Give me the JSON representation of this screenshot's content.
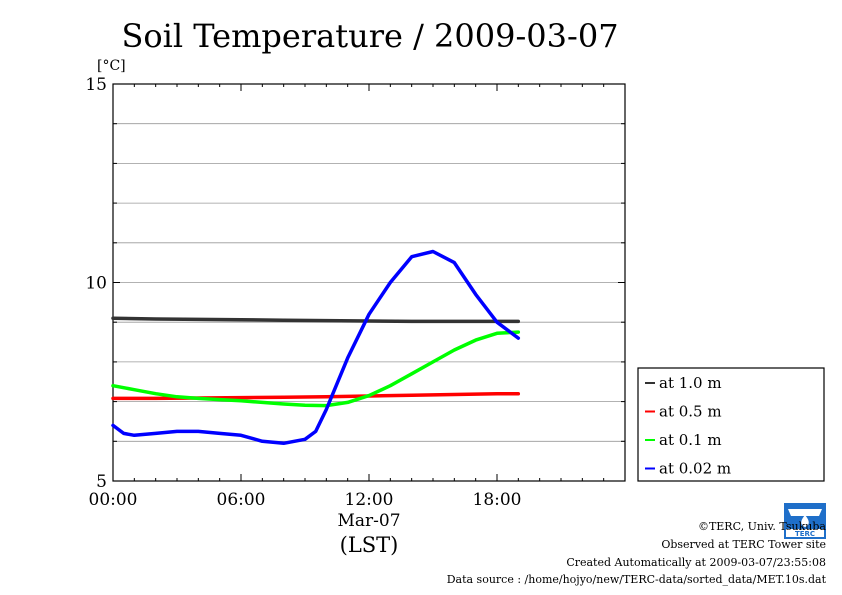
{
  "chart_data": {
    "type": "line",
    "title": "Soil Temperature / 2009-03-07",
    "ylabel": "[°C]",
    "xlabel": "(LST)",
    "date_label": "Mar-07",
    "ylim": [
      5,
      15
    ],
    "yticks": [
      "5",
      "10",
      "15"
    ],
    "xlim_hours": [
      0,
      24
    ],
    "xticks": [
      {
        "hour": 0,
        "label": "00:00"
      },
      {
        "hour": 6,
        "label": "06:00"
      },
      {
        "hour": 12,
        "label": "12:00"
      },
      {
        "hour": 18,
        "label": "18:00"
      }
    ],
    "grid": true,
    "legend_position": "right",
    "series": [
      {
        "name": "at 1.0 m",
        "color": "#333333",
        "x": [
          0,
          2,
          4,
          6,
          8,
          10,
          12,
          14,
          16,
          18,
          19
        ],
        "y": [
          9.1,
          9.08,
          9.07,
          9.06,
          9.05,
          9.04,
          9.03,
          9.02,
          9.02,
          9.02,
          9.02
        ]
      },
      {
        "name": "at 0.5 m",
        "color": "#ff0000",
        "x": [
          0,
          2,
          4,
          6,
          8,
          10,
          12,
          14,
          16,
          18,
          19
        ],
        "y": [
          7.08,
          7.08,
          7.09,
          7.1,
          7.11,
          7.12,
          7.14,
          7.16,
          7.18,
          7.2,
          7.2
        ]
      },
      {
        "name": "at 0.1 m",
        "color": "#00ff00",
        "x": [
          0,
          1,
          2,
          3,
          4,
          5,
          6,
          7,
          8,
          9,
          10,
          11,
          12,
          13,
          14,
          15,
          16,
          17,
          18,
          19
        ],
        "y": [
          7.4,
          7.3,
          7.2,
          7.12,
          7.08,
          7.05,
          7.02,
          6.98,
          6.94,
          6.91,
          6.9,
          6.98,
          7.15,
          7.4,
          7.7,
          8.0,
          8.3,
          8.55,
          8.72,
          8.75
        ]
      },
      {
        "name": "at 0.02 m",
        "color": "#0000ff",
        "x": [
          0,
          0.5,
          1,
          2,
          3,
          4,
          5,
          6,
          7,
          8,
          9,
          9.5,
          10,
          11,
          12,
          13,
          14,
          15,
          16,
          17,
          18,
          19
        ],
        "y": [
          6.4,
          6.2,
          6.15,
          6.2,
          6.25,
          6.25,
          6.2,
          6.15,
          6.0,
          5.95,
          6.05,
          6.25,
          6.8,
          8.1,
          9.2,
          10.0,
          10.65,
          10.78,
          10.5,
          9.7,
          9.0,
          8.6
        ]
      }
    ]
  },
  "footer": {
    "copyright": "©TERC, Univ. Tsukuba",
    "observed": "Observed at TERC Tower site",
    "created": "Created Automatically at 2009-03-07/23:55:08",
    "source": "Data source : /home/hojyo/new/TERC-data/sorted_data/MET.10s.dat"
  },
  "logo": {
    "text": "TERC",
    "color": "#1f6fc9"
  }
}
